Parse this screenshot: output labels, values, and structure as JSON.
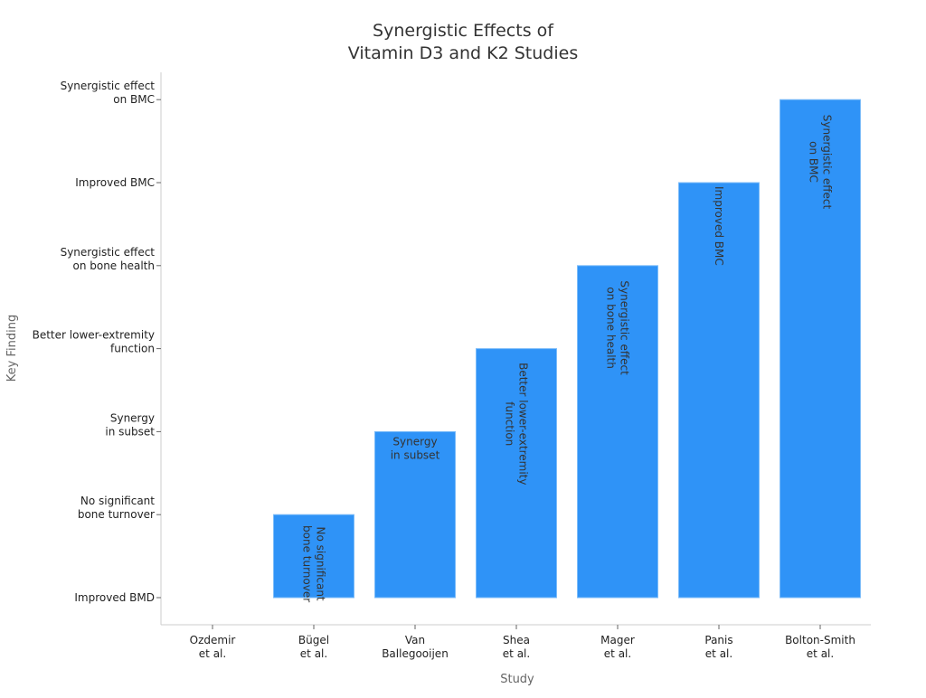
{
  "chart_data": {
    "type": "bar",
    "title": [
      "Synergistic Effects of",
      "Vitamin D3 and K2 Studies"
    ],
    "xlabel": "Study",
    "ylabel": "Key Finding",
    "categories": [
      [
        "Ozdemir",
        "et al."
      ],
      [
        "Bügel",
        "et al."
      ],
      [
        "Van",
        "Ballegooijen"
      ],
      [
        "Shea",
        "et al."
      ],
      [
        "Mager",
        "et al."
      ],
      [
        "Panis",
        "et al."
      ],
      [
        "Bolton-Smith",
        "et al."
      ]
    ],
    "y_levels": [
      [
        "Improved BMD"
      ],
      [
        "No significant",
        "bone turnover"
      ],
      [
        "Synergy",
        "in subset"
      ],
      [
        "Better lower-extremity",
        "function"
      ],
      [
        "Synergistic effect",
        "on bone health"
      ],
      [
        "Improved BMC"
      ],
      [
        "Synergistic effect",
        "on BMC"
      ]
    ],
    "values": [
      0,
      1,
      2,
      3,
      4,
      5,
      6
    ],
    "bar_labels": [
      [],
      [
        "No significant",
        "bone turnover"
      ],
      [
        "Synergy",
        "in subset"
      ],
      [
        "Better lower-extremity",
        "function"
      ],
      [
        "Synergistic effect",
        "on bone health"
      ],
      [
        "Improved BMC"
      ],
      [
        "Synergistic effect",
        "on BMC"
      ]
    ],
    "bar_label_rotated": [
      false,
      true,
      false,
      true,
      true,
      true,
      true
    ],
    "bar_color": "#2f93f7",
    "grid": false,
    "legend": "none"
  }
}
